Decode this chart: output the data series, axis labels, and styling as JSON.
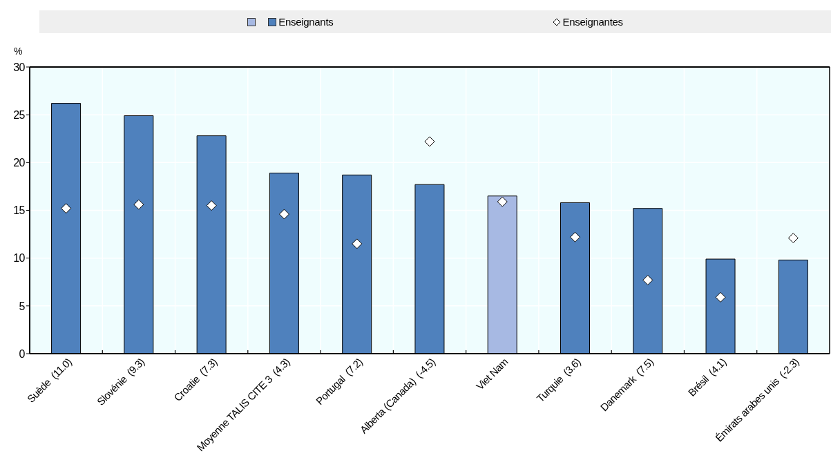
{
  "chart_data": {
    "type": "bar",
    "ylabel": "%",
    "categories": [
      "Suède  (11.0)",
      "Slovénie  (9.3)",
      "Croatie  (7.3)",
      "Moyenne TALIS CITE 3  (4.3)",
      "Portugal  (7.2)",
      "Alberta (Canada)  (-4.5)",
      "Viet Nam",
      "Turquie  (3.6)",
      "Danemark  (7.5)",
      "Brésil  (4.1)",
      "Émirats arabes unis  (-2.3)"
    ],
    "series": [
      {
        "name": "Enseignants",
        "color": "#4f81bd",
        "colors": [
          "#4f81bd",
          "#4f81bd",
          "#4f81bd",
          "#4f81bd",
          "#4f81bd",
          "#4f81bd",
          "#a7b9e3",
          "#4f81bd",
          "#4f81bd",
          "#4f81bd",
          "#4f81bd"
        ],
        "values": [
          26.2,
          24.9,
          22.8,
          18.9,
          18.7,
          17.7,
          16.5,
          15.8,
          15.2,
          9.9,
          9.8
        ]
      },
      {
        "name": "Enseignantes",
        "type": "scatter",
        "marker": "diamond",
        "color": "#ffffff",
        "values": [
          15.2,
          15.6,
          15.5,
          14.6,
          11.5,
          22.2,
          15.9,
          12.2,
          7.7,
          5.9,
          12.1
        ]
      }
    ],
    "ylim": [
      0,
      30
    ],
    "yticks": [
      0,
      5,
      10,
      15,
      20,
      25,
      30
    ],
    "grid": true,
    "legend": "top"
  }
}
